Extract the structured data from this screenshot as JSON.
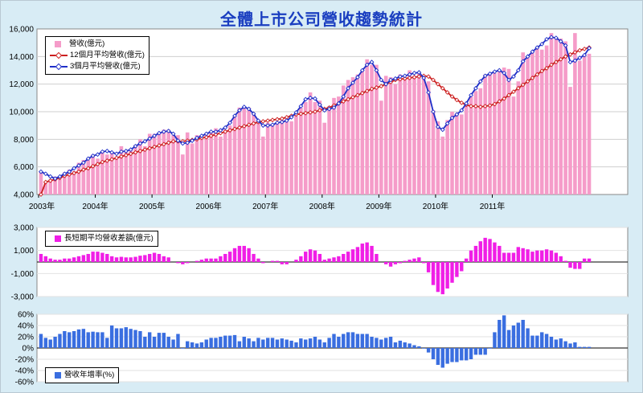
{
  "title": "全體上市公司營收趨勢統計",
  "colors": {
    "background": "#d8ecf5",
    "revenue_bar": "#f59cc9",
    "ma12": "#cc1f1f",
    "ma3": "#1f2fc8",
    "diff_bar": "#f01ee6",
    "growth_bar": "#3a6ee0",
    "title": "#1a3ec0"
  },
  "chart_data": [
    {
      "type": "bar+line",
      "ylim": [
        4000,
        16000
      ],
      "yticks": [
        "4,000",
        "6,000",
        "8,000",
        "10,000",
        "12,000",
        "14,000",
        "16,000"
      ],
      "xticks": [
        "2003年",
        "2004年",
        "2005年",
        "2006年",
        "2007年",
        "2008年",
        "2009年",
        "2010年",
        "2011年"
      ],
      "series": [
        {
          "name": "營收(億元)",
          "values": [
            5700,
            4900,
            5100,
            5300,
            5100,
            5600,
            5800,
            5700,
            6300,
            6500,
            6500,
            6900,
            6600,
            7100,
            6900,
            7100,
            6700,
            7500,
            7200,
            7300,
            7600,
            8000,
            7500,
            8400,
            8400,
            8500,
            8700,
            8700,
            8300,
            8300,
            6900,
            8500,
            7700,
            8300,
            8000,
            8300,
            8500,
            8800,
            8200,
            8700,
            9000,
            9700,
            10300,
            10300,
            10300,
            9900,
            9300,
            8200,
            9200,
            9100,
            9200,
            9400,
            9500,
            9300,
            9700,
            10300,
            10700,
            11400,
            10700,
            10800,
            9200,
            10400,
            11000,
            11100,
            11900,
            12300,
            12500,
            12700,
            13000,
            13800,
            13400,
            13400,
            10800,
            12600,
            12500,
            12000,
            12700,
            12500,
            13000,
            12600,
            12800,
            12600,
            12200,
            10100,
            9300,
            8200,
            9400,
            10000,
            9900,
            9800,
            10600,
            11100,
            11500,
            11700,
            12700,
            12700,
            12800,
            12900,
            13200,
            13100,
            11100,
            12200,
            14300,
            14000,
            14300,
            14600,
            14500,
            14800,
            15700,
            15400,
            15300,
            15100,
            11800,
            15700,
            13700,
            14100,
            14200
          ]
        },
        {
          "name": "12個月平均營收(億元)",
          "values": [
            4000,
            4900,
            5000,
            5100,
            5200,
            5350,
            5450,
            5550,
            5650,
            5800,
            5900,
            6050,
            6200,
            6350,
            6450,
            6550,
            6650,
            6750,
            6850,
            6950,
            7050,
            7150,
            7250,
            7350,
            7450,
            7550,
            7650,
            7750,
            7850,
            7850,
            7850,
            7900,
            7950,
            8000,
            8100,
            8150,
            8250,
            8350,
            8450,
            8550,
            8650,
            8750,
            8850,
            8950,
            9050,
            9150,
            9250,
            9300,
            9350,
            9400,
            9450,
            9500,
            9600,
            9700,
            9800,
            9850,
            9900,
            9950,
            10000,
            10100,
            10200,
            10300,
            10450,
            10600,
            10750,
            10900,
            11050,
            11200,
            11350,
            11500,
            11650,
            11750,
            11850,
            12000,
            12150,
            12300,
            12350,
            12400,
            12450,
            12500,
            12550,
            12600,
            12550,
            12300,
            12000,
            11700,
            11400,
            11100,
            10850,
            10650,
            10500,
            10400,
            10400,
            10350,
            10400,
            10450,
            10550,
            10750,
            10950,
            11200,
            11450,
            11700,
            11950,
            12200,
            12450,
            12700,
            12950,
            13150,
            13400,
            13600,
            13800,
            14000,
            14150,
            14300,
            14450,
            14550,
            14650
          ]
        },
        {
          "name": "3個月平均營收(億元)",
          "values": [
            5650,
            5500,
            5300,
            5150,
            5300,
            5500,
            5650,
            5900,
            6100,
            6300,
            6600,
            6800,
            6900,
            7100,
            7150,
            7050,
            6950,
            7100,
            7150,
            7250,
            7500,
            7700,
            7850,
            8050,
            8250,
            8450,
            8550,
            8600,
            8400,
            7900,
            7700,
            7750,
            7900,
            8100,
            8250,
            8400,
            8550,
            8550,
            8650,
            8850,
            9200,
            9700,
            10100,
            10350,
            10200,
            9850,
            9350,
            9000,
            9000,
            9050,
            9200,
            9250,
            9350,
            9600,
            9950,
            10400,
            10900,
            11000,
            10950,
            10500,
            10100,
            10200,
            10300,
            10600,
            11100,
            11700,
            12100,
            12500,
            13000,
            13400,
            13600,
            13000,
            12300,
            12000,
            12300,
            12400,
            12550,
            12600,
            12700,
            12800,
            12850,
            12450,
            11400,
            10000,
            8900,
            8700,
            9150,
            9550,
            9800,
            10100,
            10600,
            11200,
            11700,
            12200,
            12600,
            12750,
            12900,
            13000,
            12800,
            12300,
            12550,
            13000,
            13650,
            14000,
            14350,
            14650,
            14900,
            15250,
            15400,
            15350,
            15100,
            14800,
            13600,
            13700,
            13900,
            14100,
            14600
          ]
        }
      ]
    },
    {
      "type": "bar",
      "ylim": [
        -3000,
        3000
      ],
      "yticks": [
        "3,000",
        "1,000",
        "-1,000",
        "-3,000"
      ],
      "series": [
        {
          "name": "長短期平均營收差額(億元)",
          "values": [
            700,
            500,
            300,
            200,
            200,
            300,
            300,
            400,
            500,
            600,
            700,
            900,
            900,
            800,
            700,
            500,
            400,
            450,
            400,
            400,
            450,
            550,
            600,
            700,
            800,
            700,
            500,
            400,
            0,
            -100,
            -200,
            -100,
            0,
            100,
            200,
            300,
            300,
            300,
            500,
            700,
            900,
            1200,
            1400,
            1400,
            1200,
            700,
            300,
            -100,
            0,
            100,
            100,
            -200,
            -200,
            0,
            200,
            500,
            900,
            1100,
            1000,
            700,
            200,
            300,
            400,
            500,
            700,
            900,
            1100,
            1300,
            1600,
            1700,
            1400,
            700,
            0,
            -200,
            -400,
            -200,
            -100,
            100,
            200,
            300,
            400,
            -100,
            -900,
            -2000,
            -2600,
            -2800,
            -2300,
            -1800,
            -1300,
            -800,
            300,
            1000,
            1400,
            1800,
            2100,
            2000,
            1700,
            1400,
            800,
            800,
            800,
            1300,
            1200,
            1100,
            900,
            1000,
            1000,
            1100,
            1000,
            800,
            500,
            100,
            -500,
            -600,
            -600,
            300,
            300
          ]
        }
      ]
    },
    {
      "type": "bar",
      "ylim": [
        -60,
        60
      ],
      "yticks": [
        "60%",
        "40%",
        "20%",
        "0%",
        "-20%",
        "-40%",
        "-60%"
      ],
      "series": [
        {
          "name": "營收年增率(%)",
          "values": [
            25,
            18,
            15,
            20,
            25,
            30,
            28,
            30,
            33,
            34,
            28,
            29,
            28,
            28,
            18,
            40,
            35,
            35,
            37,
            34,
            32,
            30,
            20,
            28,
            20,
            27,
            27,
            20,
            15,
            25,
            0,
            12,
            10,
            8,
            10,
            15,
            18,
            18,
            20,
            22,
            22,
            23,
            12,
            20,
            17,
            12,
            18,
            15,
            18,
            18,
            15,
            17,
            15,
            13,
            10,
            17,
            15,
            17,
            20,
            15,
            10,
            18,
            25,
            20,
            25,
            28,
            28,
            25,
            25,
            25,
            20,
            18,
            15,
            18,
            20,
            10,
            13,
            10,
            8,
            5,
            3,
            0,
            -8,
            -20,
            -30,
            -35,
            -28,
            -25,
            -25,
            -22,
            -22,
            -20,
            -12,
            -12,
            -12,
            0,
            28,
            50,
            58,
            32,
            40,
            45,
            50,
            35,
            22,
            22,
            28,
            25,
            20,
            15,
            17,
            12,
            8,
            10,
            2,
            2,
            2
          ]
        }
      ]
    }
  ]
}
